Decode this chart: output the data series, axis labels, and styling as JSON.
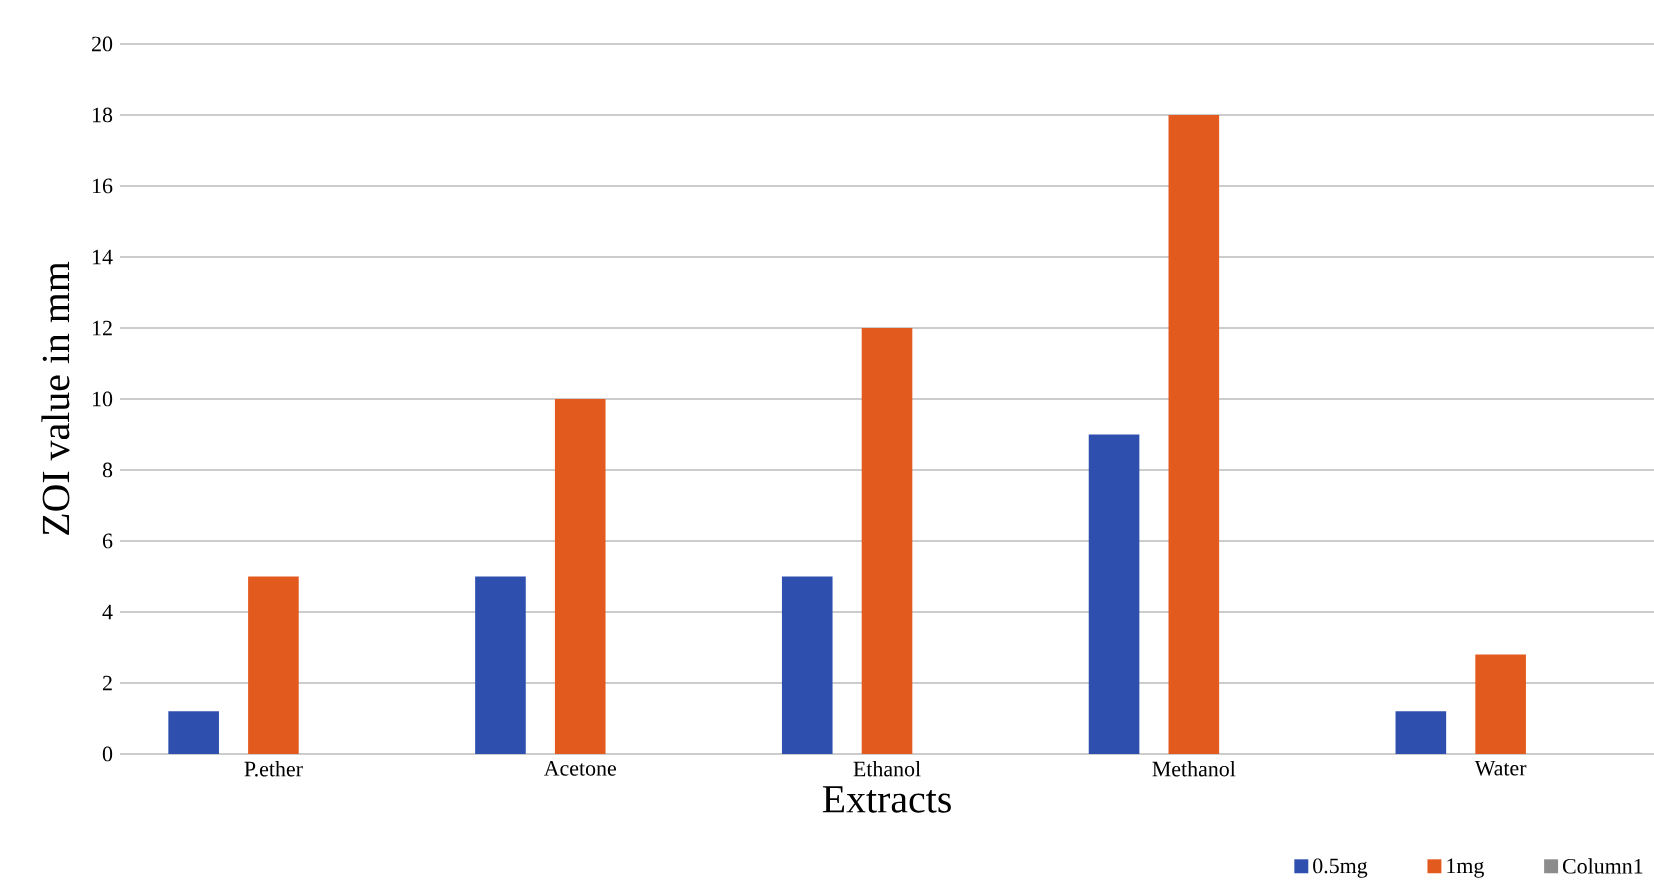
{
  "chart_data": {
    "type": "bar",
    "xlabel": "Extracts",
    "ylabel": "ZOI value in mm",
    "categories": [
      "P.ether",
      "Acetone",
      "Ethanol",
      "Methanol",
      "Water"
    ],
    "series": [
      {
        "name": "0.5mg",
        "color": "#2e4fae",
        "values": [
          1.2,
          5,
          5,
          9,
          1.2
        ]
      },
      {
        "name": "1mg",
        "color": "#e35a1f",
        "values": [
          5,
          10,
          12,
          18,
          2.8
        ]
      },
      {
        "name": "Column1",
        "color": "#8c8c8c",
        "values": [
          null,
          null,
          null,
          null,
          null
        ]
      }
    ],
    "ylim": [
      0,
      20
    ],
    "yticks": [
      0,
      2,
      4,
      6,
      8,
      10,
      12,
      14,
      16,
      18,
      20
    ],
    "grid": "y",
    "legend": "bottom right"
  }
}
